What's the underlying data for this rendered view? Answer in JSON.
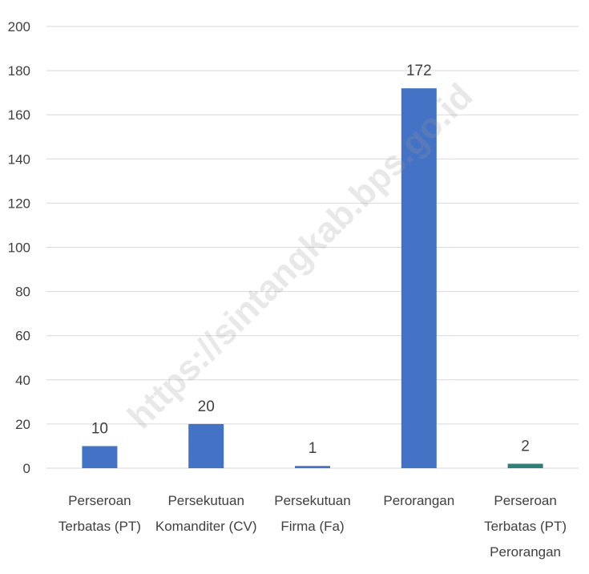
{
  "chart_data": {
    "type": "bar",
    "categories": [
      [
        "Perseroan",
        "Terbatas (PT)"
      ],
      [
        "Persekutuan",
        "Komanditer (CV)"
      ],
      [
        "Persekutuan",
        "Firma (Fa)"
      ],
      [
        "Perorangan"
      ],
      [
        "Perseroan",
        "Terbatas (PT)",
        "Perorangan"
      ]
    ],
    "values": [
      10,
      20,
      1,
      172,
      2
    ],
    "data_labels": [
      "10",
      "20",
      "1",
      "172",
      "2"
    ],
    "ylim": [
      0,
      200
    ],
    "yticks": [
      0,
      20,
      40,
      60,
      80,
      100,
      120,
      140,
      160,
      180,
      200
    ],
    "grid": true,
    "legend": "none",
    "colors": {
      "bar": "#4472C4",
      "last_bar": "#2E7F78",
      "grid": "#d9d9d9",
      "text": "#404040"
    }
  },
  "watermark": "https://sintangkab.bps.go.id"
}
